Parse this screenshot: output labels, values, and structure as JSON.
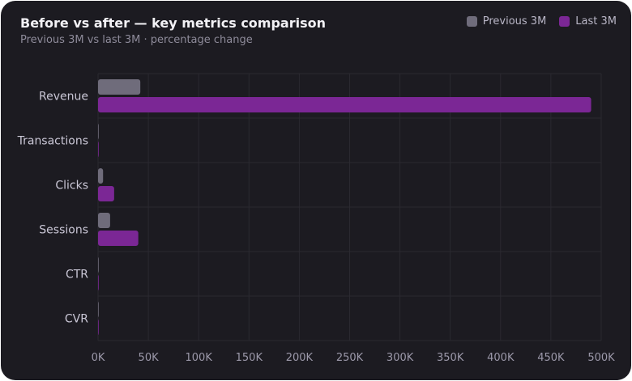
{
  "chart_data": {
    "type": "bar",
    "orientation": "horizontal",
    "title": "Before vs after — key metrics comparison",
    "subtitle": "Previous 3M vs last 3M · percentage change",
    "categories": [
      "Revenue",
      "Transactions",
      "Clicks",
      "Sessions",
      "CTR",
      "CVR"
    ],
    "series": [
      {
        "name": "Previous 3M",
        "color": "#6f6c7b",
        "values": [
          42000,
          60,
          5000,
          12000,
          3,
          1.5
        ]
      },
      {
        "name": "Last 3M",
        "color": "#7b2795",
        "values": [
          490000,
          150,
          16000,
          40000,
          4,
          2
        ]
      }
    ],
    "xlim": [
      0,
      500000
    ],
    "xticks": [
      0,
      50000,
      100000,
      150000,
      200000,
      250000,
      300000,
      350000,
      400000,
      450000,
      500000
    ],
    "xtick_labels": [
      "0K",
      "50K",
      "100K",
      "150K",
      "200K",
      "250K",
      "300K",
      "350K",
      "400K",
      "450K",
      "500K"
    ],
    "grid": true,
    "legend_position": "top-right"
  }
}
